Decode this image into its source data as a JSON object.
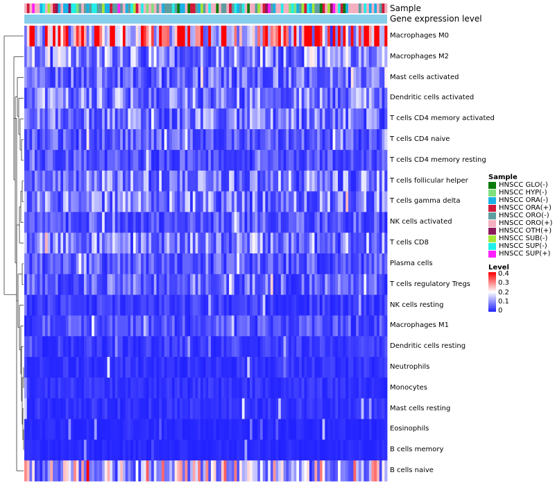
{
  "chart_data": {
    "type": "heatmap",
    "annotation_labels": {
      "sample": "Sample",
      "gene": "Gene expression level"
    },
    "rows": [
      "Macrophages M0",
      "Macrophages M2",
      "Mast cells activated",
      "Dendritic cells activated",
      "T cells CD4 memory activated",
      "T cells CD4 naive",
      "T cells CD4 memory resting",
      "T cells follicular helper",
      "T cells gamma delta",
      "NK cells activated",
      "T cells CD8",
      "Plasma cells",
      "T cells regulatory  Tregs",
      "NK cells resting",
      "Macrophages M1",
      "Dendritic cells resting",
      "Neutrophils",
      "Monocytes",
      "Mast cells resting",
      "Eosinophils",
      "B cells memory",
      "B cells naive"
    ],
    "row_mean_levels": [
      0.32,
      0.12,
      0.08,
      0.1,
      0.09,
      0.06,
      0.05,
      0.1,
      0.1,
      0.06,
      0.1,
      0.06,
      0.07,
      0.03,
      0.05,
      0.03,
      0.02,
      0.02,
      0.02,
      0.01,
      0.01,
      0.18
    ],
    "n_samples": 140,
    "sample_legend": {
      "title": "Sample",
      "items": [
        {
          "label": "HNSCC GLO(-)",
          "color": "#0a7a0a"
        },
        {
          "label": "HNSCC HYP(-)",
          "color": "#7fe07f"
        },
        {
          "label": "HNSCC ORA(-)",
          "color": "#1ab2e6"
        },
        {
          "label": "HNSCC ORA(+)",
          "color": "#d11a3a"
        },
        {
          "label": "HNSCC ORO(-)",
          "color": "#5f9ea0"
        },
        {
          "label": "HNSCC ORO(+)",
          "color": "#f4b0c0"
        },
        {
          "label": "HNSCC OTH(+)",
          "color": "#8b1a5c"
        },
        {
          "label": "HNSCC SUB(-)",
          "color": "#a6e63a"
        },
        {
          "label": "HNSCC SUP(-)",
          "color": "#20f0e8"
        },
        {
          "label": "HNSCC SUP(+)",
          "color": "#ff20ff"
        }
      ]
    },
    "level_legend": {
      "title": "Level",
      "ticks": [
        "0.4",
        "0.3",
        "0.2",
        "0.1",
        "0"
      ],
      "min": 0,
      "max": 0.4,
      "colors": {
        "low": "#2020ff",
        "mid": "#ffffff",
        "high": "#ff0000"
      }
    },
    "gene_level_color": "#87ceeb"
  }
}
